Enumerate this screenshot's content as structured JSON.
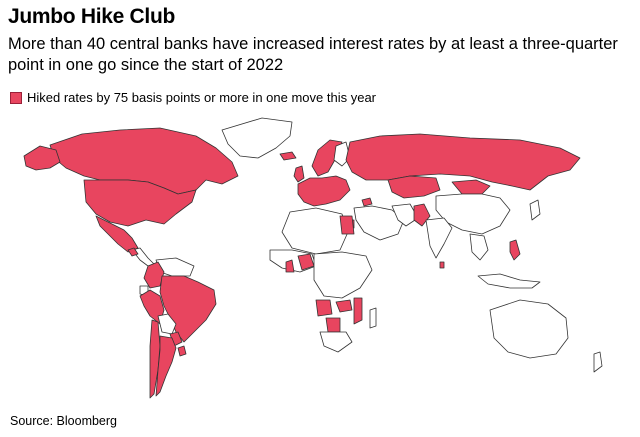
{
  "title": "Jumbo Hike Club",
  "subtitle": "More than 40 central banks have increased interest rates by at least a three-quarter point in one go since the start of 2022",
  "legend": {
    "label": "Hiked rates by 75 basis points or more in one move this year",
    "color": "#e8455f"
  },
  "map": {
    "type": "choropleth-world",
    "highlight_color": "#e8455f",
    "base_color": "#ffffff",
    "border_color": "#333333",
    "highlighted_regions": [
      "United States",
      "Canada",
      "Mexico",
      "Guatemala",
      "Colombia",
      "Peru",
      "Chile",
      "Argentina",
      "Brazil",
      "Paraguay",
      "Uruguay",
      "Iceland",
      "United Kingdom",
      "Norway",
      "Sweden",
      "Euro Area",
      "Czech Republic",
      "Hungary",
      "Romania",
      "Poland",
      "Russia",
      "Georgia",
      "Israel",
      "Egypt",
      "Pakistan",
      "Sri Lanka",
      "Philippines",
      "Ghana",
      "Nigeria",
      "Zambia",
      "Malawi",
      "Mozambique",
      "Botswana",
      "Angola",
      "Kazakhstan",
      "Mongolia"
    ]
  },
  "source": "Source: Bloomberg"
}
